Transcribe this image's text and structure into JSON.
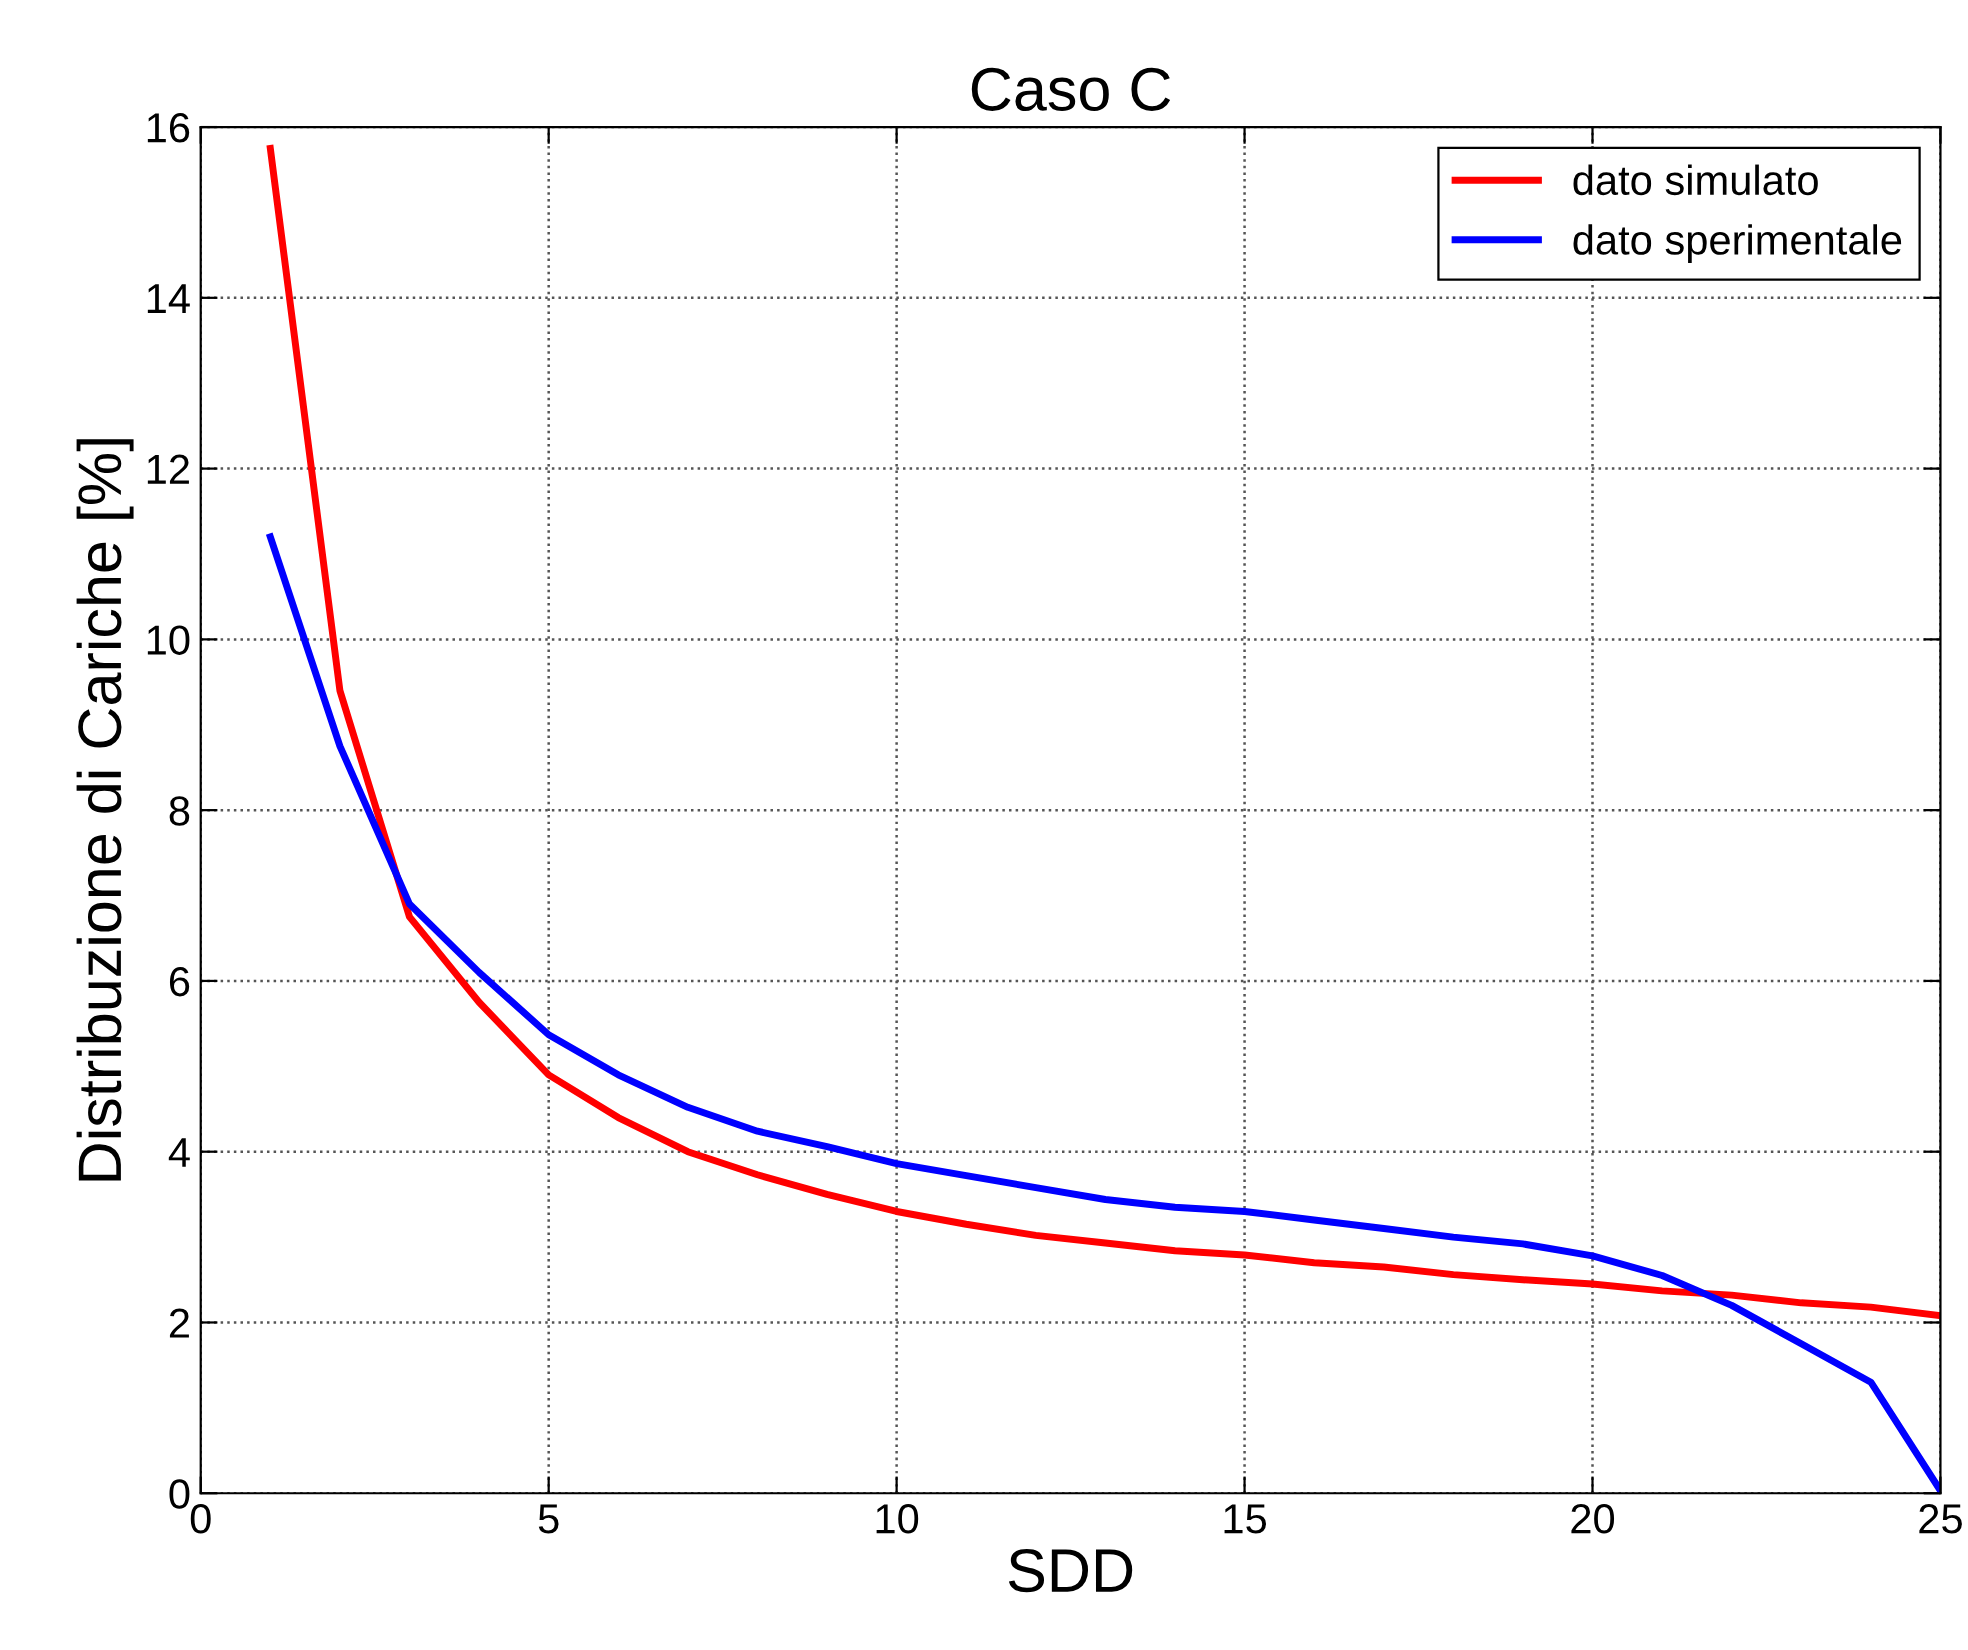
{
  "chart_data": {
    "type": "line",
    "title": "Caso C",
    "xlabel": "SDD",
    "ylabel": "Distribuzione di Cariche [%]",
    "x": [
      1,
      2,
      3,
      4,
      5,
      6,
      7,
      8,
      9,
      10,
      11,
      12,
      13,
      14,
      15,
      16,
      17,
      18,
      19,
      20,
      21,
      22,
      23,
      24,
      25
    ],
    "series": [
      {
        "name": "dato simulato",
        "color": "#ff0000",
        "values": [
          15.75,
          9.4,
          6.75,
          5.75,
          4.9,
          4.4,
          4.0,
          3.73,
          3.5,
          3.3,
          3.15,
          3.02,
          2.93,
          2.84,
          2.79,
          2.7,
          2.65,
          2.56,
          2.5,
          2.45,
          2.37,
          2.32,
          2.23,
          2.18,
          2.08
        ]
      },
      {
        "name": "dato sperimentale",
        "color": "#0000ff",
        "values": [
          11.2,
          8.75,
          6.9,
          6.1,
          5.37,
          4.9,
          4.52,
          4.24,
          4.06,
          3.86,
          3.72,
          3.58,
          3.44,
          3.35,
          3.3,
          3.2,
          3.1,
          3.0,
          2.92,
          2.78,
          2.55,
          2.2,
          1.75,
          1.3,
          0.03
        ]
      }
    ],
    "xlim": [
      0,
      25
    ],
    "xticks": [
      0,
      5,
      10,
      15,
      20,
      25
    ],
    "ylim": [
      0,
      16
    ],
    "yticks": [
      0,
      2,
      4,
      6,
      8,
      10,
      12,
      14,
      16
    ],
    "grid": true,
    "legend": "top right",
    "marker": "none",
    "line_style": "solid"
  }
}
